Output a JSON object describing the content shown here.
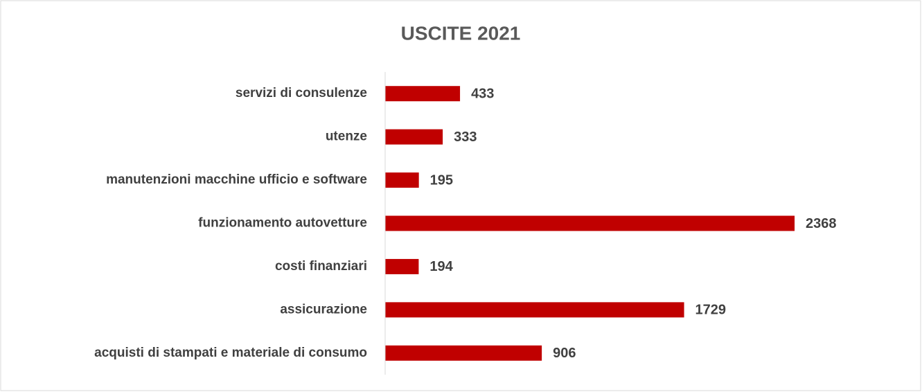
{
  "chart_data": {
    "type": "hbar",
    "title": "USCITE 2021",
    "categories": [
      "servizi di consulenze",
      "utenze",
      "manutenzioni macchine ufficio e software",
      "funzionamento autovetture",
      "costi finanziari",
      "assicurazione",
      "acquisti di stampati e materiale di consumo"
    ],
    "values": [
      433,
      333,
      195,
      2368,
      194,
      1729,
      906
    ],
    "color": "#c00000",
    "xlim": [
      0,
      2500
    ],
    "data_labels": true
  }
}
